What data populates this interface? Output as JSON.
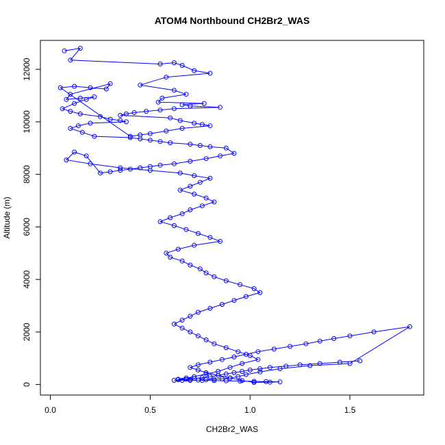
{
  "chart_data": {
    "type": "scatter",
    "title": "ATOM4 Northbound CH2Br2_WAS",
    "xlabel": "CH2Br2_WAS",
    "ylabel": "Altitude (m)",
    "xlim": [
      -0.05,
      1.87
    ],
    "ylim": [
      -400,
      13100
    ],
    "xticks": [
      "0.0",
      "0.5",
      "1.0",
      "1.5"
    ],
    "yticks": [
      "0",
      "2000",
      "4000",
      "6000",
      "8000",
      "10000",
      "12000"
    ],
    "grid": false,
    "style": "points connected by lines, open circle markers",
    "color": "#0000ff",
    "series": [
      {
        "x": [
          0.07,
          0.15,
          0.1,
          0.55,
          0.62,
          0.66,
          0.72,
          0.8,
          0.58,
          0.45,
          0.62,
          0.68,
          0.56,
          0.54,
          0.77,
          0.66,
          0.7,
          0.85,
          0.62,
          0.55,
          0.48,
          0.42,
          0.38,
          0.35,
          0.6,
          0.65,
          0.72,
          0.76,
          0.8,
          0.66,
          0.58,
          0.5,
          0.45,
          0.4,
          0.05,
          0.12,
          0.2,
          0.28,
          0.3,
          0.1,
          0.08,
          0.15,
          0.22,
          0.18,
          0.12,
          0.06,
          0.1,
          0.15,
          0.25,
          0.3,
          0.35,
          0.38,
          0.2,
          0.14,
          0.1,
          0.16,
          0.22,
          0.4,
          0.45,
          0.5,
          0.55,
          0.6,
          0.7,
          0.75,
          0.8,
          0.88,
          0.92,
          0.85,
          0.78,
          0.7,
          0.62,
          0.55,
          0.5,
          0.45,
          0.4,
          0.35,
          0.3,
          0.25,
          0.18,
          0.12,
          0.08,
          0.2,
          0.35,
          0.5,
          0.65,
          0.72,
          0.8,
          0.75,
          0.7,
          0.65,
          0.72,
          0.78,
          0.82,
          0.76,
          0.7,
          0.66,
          0.6,
          0.55,
          0.62,
          0.68,
          0.74,
          0.8,
          0.85,
          0.72,
          0.64,
          0.58,
          0.6,
          0.66,
          0.7,
          0.75,
          0.78,
          0.82,
          0.88,
          0.95,
          1.02,
          1.05,
          0.98,
          0.92,
          0.86,
          0.8,
          0.74,
          0.7,
          0.66,
          0.62,
          0.66,
          0.7,
          0.74,
          0.78,
          0.82,
          0.88,
          0.94,
          1.0,
          1.04,
          0.96,
          0.9,
          0.84,
          0.78,
          0.72,
          0.68,
          0.64,
          0.7,
          0.76,
          0.82,
          0.88,
          0.95,
          1.02,
          1.08,
          1.15,
          1.1,
          1.02,
          0.96,
          0.9,
          0.84,
          0.78,
          0.74,
          0.7,
          0.74,
          0.8,
          0.86,
          0.92,
          0.98,
          1.04,
          1.12,
          1.2,
          1.28,
          1.35,
          1.42,
          1.5,
          1.62,
          1.8,
          1.5,
          1.3,
          1.15,
          1.05,
          0.98,
          0.94,
          0.9,
          0.86,
          0.82,
          0.78,
          0.74,
          0.7,
          0.66,
          0.62,
          0.64,
          0.68,
          0.72,
          0.76,
          0.8,
          0.84,
          0.88,
          0.92,
          0.96,
          1.0,
          1.05,
          1.1,
          1.18,
          1.25,
          1.35,
          1.45,
          1.55
        ],
        "y": [
          12700,
          12800,
          12350,
          12200,
          12250,
          12150,
          11950,
          11850,
          11700,
          11400,
          11200,
          11050,
          10900,
          10750,
          10700,
          10650,
          10600,
          10550,
          10500,
          10450,
          10400,
          10350,
          10300,
          10250,
          10150,
          10050,
          9950,
          9900,
          9850,
          9750,
          9650,
          9550,
          9500,
          9450,
          11300,
          11350,
          11300,
          11250,
          11450,
          11050,
          10850,
          10900,
          10950,
          10850,
          10700,
          10500,
          10400,
          10300,
          10200,
          10100,
          10050,
          10000,
          9950,
          9850,
          9750,
          9600,
          9450,
          9400,
          9350,
          9300,
          9250,
          9200,
          9150,
          9100,
          9050,
          9000,
          8800,
          8700,
          8600,
          8500,
          8400,
          8350,
          8300,
          8250,
          8200,
          8150,
          8100,
          8050,
          8700,
          8850,
          8550,
          8400,
          8250,
          8150,
          8050,
          7950,
          7850,
          7700,
          7550,
          7400,
          7250,
          7100,
          6950,
          6800,
          6650,
          6500,
          6350,
          6200,
          6050,
          5900,
          5750,
          5600,
          5450,
          5300,
          5150,
          5000,
          4850,
          4700,
          4550,
          4400,
          4250,
          4100,
          3950,
          3800,
          3650,
          3500,
          3350,
          3200,
          3050,
          2900,
          2750,
          2600,
          2450,
          2300,
          2150,
          2000,
          1850,
          1700,
          1550,
          1400,
          1250,
          1100,
          950,
          800,
          650,
          500,
          400,
          300,
          250,
          200,
          180,
          160,
          150,
          140,
          130,
          120,
          110,
          100,
          90,
          80,
          150,
          250,
          350,
          450,
          550,
          650,
          750,
          850,
          950,
          1050,
          1150,
          1250,
          1350,
          1450,
          1550,
          1650,
          1750,
          1850,
          2000,
          2200,
          800,
          720,
          600,
          480,
          380,
          300,
          250,
          220,
          200,
          180,
          170,
          160,
          160,
          160,
          180,
          200,
          230,
          260,
          300,
          350,
          400,
          450,
          500,
          550,
          600,
          650,
          700,
          750,
          800,
          850,
          900
        ]
      }
    ]
  }
}
